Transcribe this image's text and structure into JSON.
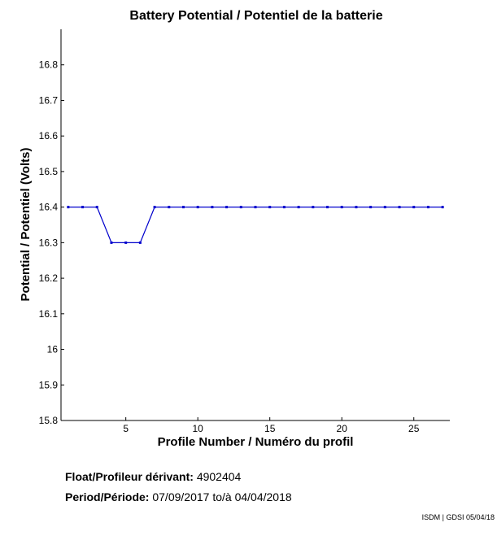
{
  "chart_data": {
    "type": "line",
    "title": "Battery Potential / Potentiel de la batterie",
    "xlabel": "Profile Number / Numéro du profil",
    "ylabel": "Potential / Potentiel (Volts)",
    "xlim": [
      0.5,
      27.5
    ],
    "ylim": [
      15.8,
      16.9
    ],
    "xticks": [
      5,
      10,
      15,
      20,
      25
    ],
    "yticks": [
      15.8,
      15.9,
      16,
      16.1,
      16.2,
      16.3,
      16.4,
      16.5,
      16.6,
      16.7,
      16.8
    ],
    "grid": false,
    "series_color": "#0000cc",
    "x": [
      1,
      2,
      3,
      4,
      5,
      6,
      7,
      8,
      9,
      10,
      11,
      12,
      13,
      14,
      15,
      16,
      17,
      18,
      19,
      20,
      21,
      22,
      23,
      24,
      25,
      26,
      27
    ],
    "y": [
      16.4,
      16.4,
      16.4,
      16.3,
      16.3,
      16.3,
      16.4,
      16.4,
      16.4,
      16.4,
      16.4,
      16.4,
      16.4,
      16.4,
      16.4,
      16.4,
      16.4,
      16.4,
      16.4,
      16.4,
      16.4,
      16.4,
      16.4,
      16.4,
      16.4,
      16.4,
      16.4
    ]
  },
  "info": {
    "float_label": "Float/Profileur dérivant:",
    "float_value": "4902404",
    "period_label": "Period/Période:",
    "period_start": "07/09/2017",
    "period_sep": "to/à",
    "period_end": "04/04/2018"
  },
  "credit": "ISDM | GDSI 05/04/18"
}
